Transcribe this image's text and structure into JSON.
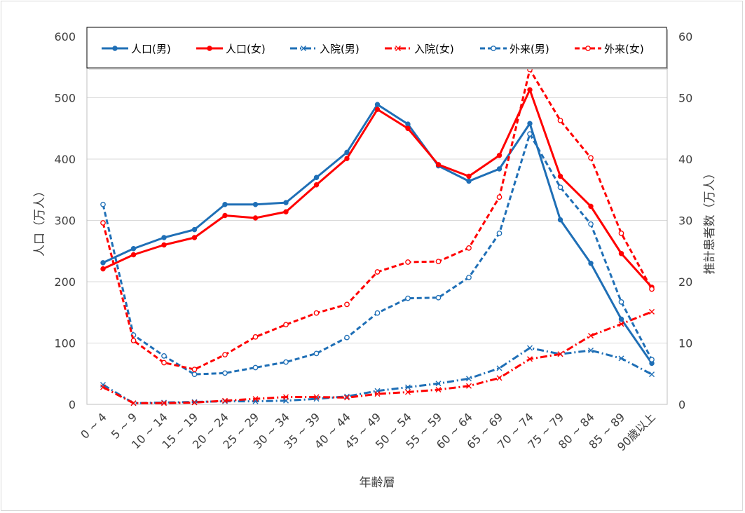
{
  "chart_data": {
    "type": "line",
    "title": "",
    "xlabel": "年齢層",
    "ylabel_left": "人口（万人）",
    "ylabel_right": "推計患者数（万人）",
    "ylim_left": [
      0,
      600
    ],
    "ylim_right": [
      0,
      60
    ],
    "yticks_left": [
      "0",
      "100",
      "200",
      "300",
      "400",
      "500",
      "600"
    ],
    "yticks_right": [
      "0",
      "10",
      "20",
      "30",
      "40",
      "50",
      "60"
    ],
    "grid": true,
    "legend_position": "top",
    "categories": [
      "0 ~ 4",
      "5 ~ 9",
      "10 ~ 14",
      "15 ~ 19",
      "20 ~ 24",
      "25 ~ 29",
      "30 ~ 34",
      "35 ~ 39",
      "40 ~ 44",
      "45 ~ 49",
      "50 ~ 54",
      "55 ~ 59",
      "60 ~ 64",
      "65 ~ 69",
      "70 ~ 74",
      "75 ~ 79",
      "80 ~ 84",
      "85 ~ 89",
      "90歳以上"
    ],
    "series": [
      {
        "name": "人口(男)",
        "axis": "left",
        "color": "#1f6fb6",
        "style": "solid",
        "marker": "dot",
        "values": [
          231,
          254,
          272,
          285,
          326,
          326,
          329,
          370,
          411,
          489,
          457,
          389,
          364,
          384,
          458,
          301,
          230,
          139,
          67
        ]
      },
      {
        "name": "人口(女)",
        "axis": "left",
        "color": "#ff0000",
        "style": "solid",
        "marker": "dot",
        "values": [
          221,
          244,
          260,
          272,
          308,
          304,
          314,
          358,
          401,
          481,
          450,
          391,
          372,
          406,
          513,
          372,
          323,
          246,
          191
        ]
      },
      {
        "name": "入院(男)",
        "axis": "right",
        "color": "#1f6fb6",
        "style": "dashdot",
        "marker": "x",
        "values": [
          3.2,
          0.2,
          0.3,
          0.4,
          0.5,
          0.5,
          0.6,
          0.9,
          1.3,
          2.2,
          2.8,
          3.4,
          4.2,
          5.9,
          9.2,
          8.2,
          8.8,
          7.5,
          4.9
        ]
      },
      {
        "name": "入院(女)",
        "axis": "right",
        "color": "#ff0000",
        "style": "dashdot",
        "marker": "x",
        "values": [
          2.8,
          0.2,
          0.2,
          0.3,
          0.6,
          0.9,
          1.2,
          1.2,
          1.1,
          1.7,
          2.0,
          2.4,
          3.0,
          4.3,
          7.4,
          8.2,
          11.2,
          13.1,
          15.1
        ]
      },
      {
        "name": "外来(男)",
        "axis": "right",
        "color": "#1f6fb6",
        "style": "dashed",
        "marker": "circle",
        "values": [
          32.6,
          11.3,
          7.9,
          4.9,
          5.1,
          6.0,
          6.9,
          8.3,
          10.9,
          14.9,
          17.3,
          17.4,
          20.7,
          27.9,
          44.1,
          35.4,
          29.4,
          16.7,
          7.3
        ]
      },
      {
        "name": "外来(女)",
        "axis": "right",
        "color": "#ff0000",
        "style": "dashed",
        "marker": "circle",
        "values": [
          29.6,
          10.4,
          6.8,
          5.7,
          8.1,
          11.0,
          13.0,
          14.9,
          16.3,
          21.6,
          23.2,
          23.3,
          25.5,
          33.8,
          54.6,
          46.3,
          40.2,
          27.9,
          18.8
        ]
      }
    ]
  }
}
